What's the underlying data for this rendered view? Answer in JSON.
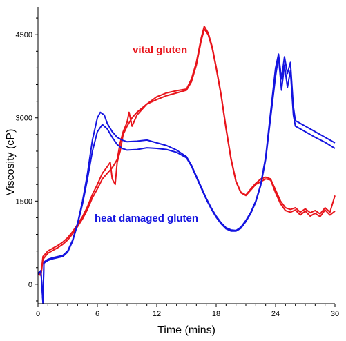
{
  "chart_data": {
    "type": "line",
    "title": "",
    "xlabel": "Time (mins)",
    "ylabel": "Viscosity (cP)",
    "xlim": [
      0,
      30
    ],
    "ylim": [
      -350,
      5000
    ],
    "x_ticks": [
      0,
      6,
      12,
      18,
      24,
      30
    ],
    "y_ticks": [
      0,
      1500,
      3000,
      4500
    ],
    "x_tick_labels": [
      "0",
      "6",
      "12",
      "18",
      "24",
      "30"
    ],
    "y_tick_labels": [
      "0",
      "1500",
      "3000",
      "4500"
    ],
    "grid": false,
    "annotations": [
      {
        "text": "vital gluten",
        "color": "#e8141b"
      },
      {
        "text": "heat damaged gluten",
        "color": "#1414e0"
      }
    ],
    "series": [
      {
        "color": "#e8141b",
        "points": [
          [
            0,
            200
          ],
          [
            0.3,
            180
          ],
          [
            0.5,
            500
          ],
          [
            1,
            600
          ],
          [
            1.5,
            650
          ],
          [
            2,
            700
          ],
          [
            2.5,
            760
          ],
          [
            3,
            840
          ],
          [
            3.5,
            950
          ],
          [
            4,
            1080
          ],
          [
            4.5,
            1220
          ],
          [
            5,
            1400
          ],
          [
            5.5,
            1620
          ],
          [
            6,
            1800
          ],
          [
            6.5,
            2000
          ],
          [
            7,
            2120
          ],
          [
            7.3,
            2200
          ],
          [
            7.5,
            1900
          ],
          [
            7.8,
            1800
          ],
          [
            8,
            2200
          ],
          [
            8.3,
            2400
          ],
          [
            8.6,
            2700
          ],
          [
            9,
            2850
          ],
          [
            9.5,
            3000
          ],
          [
            10,
            3100
          ],
          [
            11,
            3250
          ],
          [
            12,
            3330
          ],
          [
            13,
            3400
          ],
          [
            14,
            3450
          ],
          [
            15,
            3500
          ],
          [
            15.5,
            3650
          ],
          [
            16,
            3950
          ],
          [
            16.5,
            4400
          ],
          [
            16.8,
            4600
          ],
          [
            17.2,
            4500
          ],
          [
            17.6,
            4250
          ],
          [
            18,
            3900
          ],
          [
            18.5,
            3400
          ],
          [
            19,
            2800
          ],
          [
            19.5,
            2250
          ],
          [
            20,
            1850
          ],
          [
            20.5,
            1650
          ],
          [
            21,
            1600
          ],
          [
            21.5,
            1700
          ],
          [
            22,
            1800
          ],
          [
            22.5,
            1850
          ],
          [
            23,
            1900
          ],
          [
            23.5,
            1880
          ],
          [
            24,
            1650
          ],
          [
            24.5,
            1450
          ],
          [
            25,
            1330
          ],
          [
            25.5,
            1300
          ],
          [
            26,
            1340
          ],
          [
            26.5,
            1250
          ],
          [
            27,
            1320
          ],
          [
            27.5,
            1230
          ],
          [
            28,
            1280
          ],
          [
            28.5,
            1220
          ],
          [
            29,
            1340
          ],
          [
            29.5,
            1250
          ],
          [
            30,
            1320
          ]
        ]
      },
      {
        "color": "#e8141b",
        "points": [
          [
            0,
            180
          ],
          [
            0.3,
            160
          ],
          [
            0.5,
            450
          ],
          [
            1,
            560
          ],
          [
            1.5,
            610
          ],
          [
            2,
            660
          ],
          [
            2.5,
            720
          ],
          [
            3,
            800
          ],
          [
            3.5,
            910
          ],
          [
            4,
            1040
          ],
          [
            4.5,
            1180
          ],
          [
            5,
            1350
          ],
          [
            5.5,
            1560
          ],
          [
            6,
            1720
          ],
          [
            6.5,
            1900
          ],
          [
            7,
            2000
          ],
          [
            7.5,
            2100
          ],
          [
            8,
            2250
          ],
          [
            8.3,
            2550
          ],
          [
            8.6,
            2750
          ],
          [
            9,
            2920
          ],
          [
            9.2,
            3100
          ],
          [
            9.5,
            2850
          ],
          [
            10,
            3050
          ],
          [
            11,
            3250
          ],
          [
            12,
            3380
          ],
          [
            13,
            3450
          ],
          [
            14,
            3490
          ],
          [
            15,
            3520
          ],
          [
            15.5,
            3700
          ],
          [
            16,
            4000
          ],
          [
            16.5,
            4450
          ],
          [
            16.8,
            4650
          ],
          [
            17.2,
            4530
          ],
          [
            17.6,
            4280
          ],
          [
            18,
            3920
          ],
          [
            18.5,
            3420
          ],
          [
            19,
            2820
          ],
          [
            19.5,
            2270
          ],
          [
            20,
            1860
          ],
          [
            20.5,
            1660
          ],
          [
            21,
            1610
          ],
          [
            21.5,
            1720
          ],
          [
            22,
            1820
          ],
          [
            22.5,
            1900
          ],
          [
            23,
            1930
          ],
          [
            23.5,
            1900
          ],
          [
            24,
            1700
          ],
          [
            24.5,
            1500
          ],
          [
            25,
            1380
          ],
          [
            25.5,
            1350
          ],
          [
            26,
            1380
          ],
          [
            26.5,
            1300
          ],
          [
            27,
            1360
          ],
          [
            27.5,
            1290
          ],
          [
            28,
            1330
          ],
          [
            28.5,
            1270
          ],
          [
            29,
            1380
          ],
          [
            29.5,
            1300
          ],
          [
            30,
            1600
          ]
        ]
      },
      {
        "color": "#1414e0",
        "points": [
          [
            0,
            200
          ],
          [
            0.3,
            250
          ],
          [
            0.5,
            -350
          ],
          [
            0.6,
            400
          ],
          [
            1,
            450
          ],
          [
            1.5,
            480
          ],
          [
            2,
            500
          ],
          [
            2.5,
            520
          ],
          [
            3,
            600
          ],
          [
            3.5,
            800
          ],
          [
            4,
            1100
          ],
          [
            4.5,
            1500
          ],
          [
            5,
            2000
          ],
          [
            5.5,
            2600
          ],
          [
            6,
            3000
          ],
          [
            6.3,
            3100
          ],
          [
            6.7,
            3050
          ],
          [
            7,
            2900
          ],
          [
            7.5,
            2750
          ],
          [
            8,
            2650
          ],
          [
            8.5,
            2600
          ],
          [
            9,
            2570
          ],
          [
            10,
            2580
          ],
          [
            11,
            2600
          ],
          [
            12,
            2550
          ],
          [
            13,
            2500
          ],
          [
            14,
            2420
          ],
          [
            15,
            2300
          ],
          [
            15.5,
            2150
          ],
          [
            16,
            1950
          ],
          [
            16.5,
            1750
          ],
          [
            17,
            1550
          ],
          [
            17.5,
            1380
          ],
          [
            18,
            1230
          ],
          [
            18.5,
            1110
          ],
          [
            19,
            1020
          ],
          [
            19.5,
            980
          ],
          [
            20,
            970
          ],
          [
            20.5,
            1030
          ],
          [
            21,
            1150
          ],
          [
            21.5,
            1300
          ],
          [
            22,
            1500
          ],
          [
            22.5,
            1800
          ],
          [
            23,
            2300
          ],
          [
            23.5,
            3100
          ],
          [
            24,
            3900
          ],
          [
            24.3,
            4150
          ],
          [
            24.6,
            3700
          ],
          [
            24.9,
            4100
          ],
          [
            25.2,
            3800
          ],
          [
            25.5,
            4000
          ],
          [
            25.8,
            3200
          ],
          [
            26,
            2950
          ],
          [
            27,
            2850
          ],
          [
            28,
            2750
          ],
          [
            29,
            2650
          ],
          [
            30,
            2550
          ]
        ]
      },
      {
        "color": "#1414e0",
        "points": [
          [
            0,
            180
          ],
          [
            0.3,
            230
          ],
          [
            0.5,
            -320
          ],
          [
            0.6,
            380
          ],
          [
            1,
            430
          ],
          [
            1.5,
            460
          ],
          [
            2,
            480
          ],
          [
            2.5,
            500
          ],
          [
            3,
            580
          ],
          [
            3.5,
            780
          ],
          [
            4,
            1080
          ],
          [
            4.5,
            1450
          ],
          [
            5,
            1900
          ],
          [
            5.5,
            2400
          ],
          [
            6,
            2750
          ],
          [
            6.5,
            2880
          ],
          [
            7,
            2800
          ],
          [
            7.5,
            2650
          ],
          [
            8,
            2520
          ],
          [
            8.5,
            2450
          ],
          [
            9,
            2420
          ],
          [
            10,
            2430
          ],
          [
            11,
            2460
          ],
          [
            12,
            2450
          ],
          [
            13,
            2430
          ],
          [
            14,
            2380
          ],
          [
            15,
            2280
          ],
          [
            15.5,
            2130
          ],
          [
            16,
            1930
          ],
          [
            16.5,
            1730
          ],
          [
            17,
            1530
          ],
          [
            17.5,
            1360
          ],
          [
            18,
            1210
          ],
          [
            18.5,
            1090
          ],
          [
            19,
            1000
          ],
          [
            19.5,
            960
          ],
          [
            20,
            960
          ],
          [
            20.5,
            1010
          ],
          [
            21,
            1130
          ],
          [
            21.5,
            1280
          ],
          [
            22,
            1480
          ],
          [
            22.5,
            1780
          ],
          [
            23,
            2250
          ],
          [
            23.5,
            3000
          ],
          [
            24,
            3750
          ],
          [
            24.3,
            4100
          ],
          [
            24.6,
            3500
          ],
          [
            24.9,
            3950
          ],
          [
            25.2,
            3550
          ],
          [
            25.5,
            3850
          ],
          [
            25.8,
            3050
          ],
          [
            26,
            2850
          ],
          [
            27,
            2750
          ],
          [
            28,
            2650
          ],
          [
            29,
            2560
          ],
          [
            30,
            2450
          ]
        ]
      }
    ]
  }
}
